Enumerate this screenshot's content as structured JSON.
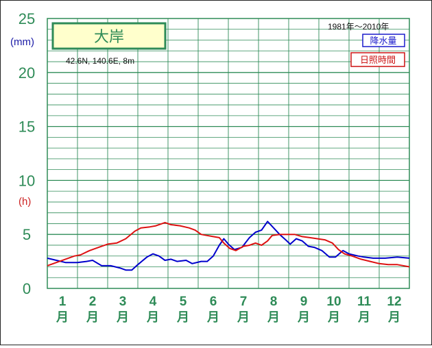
{
  "chart_data": {
    "type": "line",
    "title": "大岸",
    "location": "42.6N, 140.6E, 8m",
    "period": "1981年～2010年",
    "y_ticks": [
      "25",
      "20",
      "15",
      "10",
      "5",
      "0"
    ],
    "ylim": [
      0,
      25
    ],
    "unit_precip": "(mm)",
    "unit_sun": "(h)",
    "months": [
      "1",
      "2",
      "3",
      "4",
      "5",
      "6",
      "7",
      "8",
      "9",
      "10",
      "11",
      "12"
    ],
    "month_suffix": "月",
    "x_range": [
      1,
      13
    ],
    "grid": true,
    "legend_position": "top-right",
    "series": [
      {
        "name": "降水量",
        "color": "#0000cc",
        "points": [
          [
            1.0,
            2.8
          ],
          [
            1.3,
            2.6
          ],
          [
            1.6,
            2.4
          ],
          [
            2.0,
            2.4
          ],
          [
            2.3,
            2.5
          ],
          [
            2.5,
            2.6
          ],
          [
            2.8,
            2.1
          ],
          [
            3.1,
            2.1
          ],
          [
            3.4,
            1.9
          ],
          [
            3.6,
            1.7
          ],
          [
            3.8,
            1.7
          ],
          [
            4.0,
            2.2
          ],
          [
            4.3,
            2.9
          ],
          [
            4.5,
            3.2
          ],
          [
            4.7,
            3.0
          ],
          [
            4.9,
            2.6
          ],
          [
            5.1,
            2.7
          ],
          [
            5.3,
            2.5
          ],
          [
            5.6,
            2.6
          ],
          [
            5.8,
            2.3
          ],
          [
            6.1,
            2.5
          ],
          [
            6.3,
            2.5
          ],
          [
            6.5,
            3.0
          ],
          [
            6.7,
            4.0
          ],
          [
            6.85,
            4.6
          ],
          [
            7.0,
            4.1
          ],
          [
            7.2,
            3.6
          ],
          [
            7.45,
            3.8
          ],
          [
            7.7,
            4.7
          ],
          [
            7.9,
            5.2
          ],
          [
            8.1,
            5.4
          ],
          [
            8.3,
            6.2
          ],
          [
            8.5,
            5.6
          ],
          [
            8.7,
            5.0
          ],
          [
            8.9,
            4.5
          ],
          [
            9.05,
            4.1
          ],
          [
            9.25,
            4.6
          ],
          [
            9.45,
            4.4
          ],
          [
            9.65,
            3.9
          ],
          [
            9.85,
            3.8
          ],
          [
            10.1,
            3.5
          ],
          [
            10.35,
            2.9
          ],
          [
            10.55,
            2.9
          ],
          [
            10.8,
            3.5
          ],
          [
            11.0,
            3.2
          ],
          [
            11.3,
            3.0
          ],
          [
            11.5,
            2.9
          ],
          [
            11.8,
            2.8
          ],
          [
            12.2,
            2.8
          ],
          [
            12.6,
            2.9
          ],
          [
            13.0,
            2.8
          ]
        ]
      },
      {
        "name": "日照時間",
        "color": "#dd1111",
        "points": [
          [
            1.0,
            2.1
          ],
          [
            1.3,
            2.4
          ],
          [
            1.6,
            2.7
          ],
          [
            1.9,
            3.0
          ],
          [
            2.1,
            3.1
          ],
          [
            2.4,
            3.5
          ],
          [
            2.7,
            3.8
          ],
          [
            3.0,
            4.1
          ],
          [
            3.3,
            4.2
          ],
          [
            3.6,
            4.6
          ],
          [
            3.9,
            5.3
          ],
          [
            4.1,
            5.6
          ],
          [
            4.4,
            5.7
          ],
          [
            4.6,
            5.8
          ],
          [
            4.9,
            6.1
          ],
          [
            5.1,
            5.9
          ],
          [
            5.4,
            5.8
          ],
          [
            5.7,
            5.6
          ],
          [
            5.9,
            5.4
          ],
          [
            6.1,
            5.0
          ],
          [
            6.3,
            4.9
          ],
          [
            6.5,
            4.8
          ],
          [
            6.7,
            4.7
          ],
          [
            6.85,
            4.2
          ],
          [
            7.05,
            3.7
          ],
          [
            7.25,
            3.5
          ],
          [
            7.5,
            3.9
          ],
          [
            7.7,
            4.0
          ],
          [
            7.9,
            4.2
          ],
          [
            8.1,
            4.0
          ],
          [
            8.3,
            4.4
          ],
          [
            8.45,
            4.9
          ],
          [
            8.7,
            5.0
          ],
          [
            8.95,
            5.0
          ],
          [
            9.2,
            5.0
          ],
          [
            9.45,
            4.8
          ],
          [
            9.7,
            4.7
          ],
          [
            9.95,
            4.6
          ],
          [
            10.2,
            4.5
          ],
          [
            10.45,
            4.2
          ],
          [
            10.65,
            3.6
          ],
          [
            10.85,
            3.2
          ],
          [
            11.1,
            3.0
          ],
          [
            11.4,
            2.7
          ],
          [
            11.7,
            2.5
          ],
          [
            12.0,
            2.3
          ],
          [
            12.3,
            2.2
          ],
          [
            12.6,
            2.2
          ],
          [
            13.0,
            2.0
          ]
        ]
      }
    ]
  }
}
